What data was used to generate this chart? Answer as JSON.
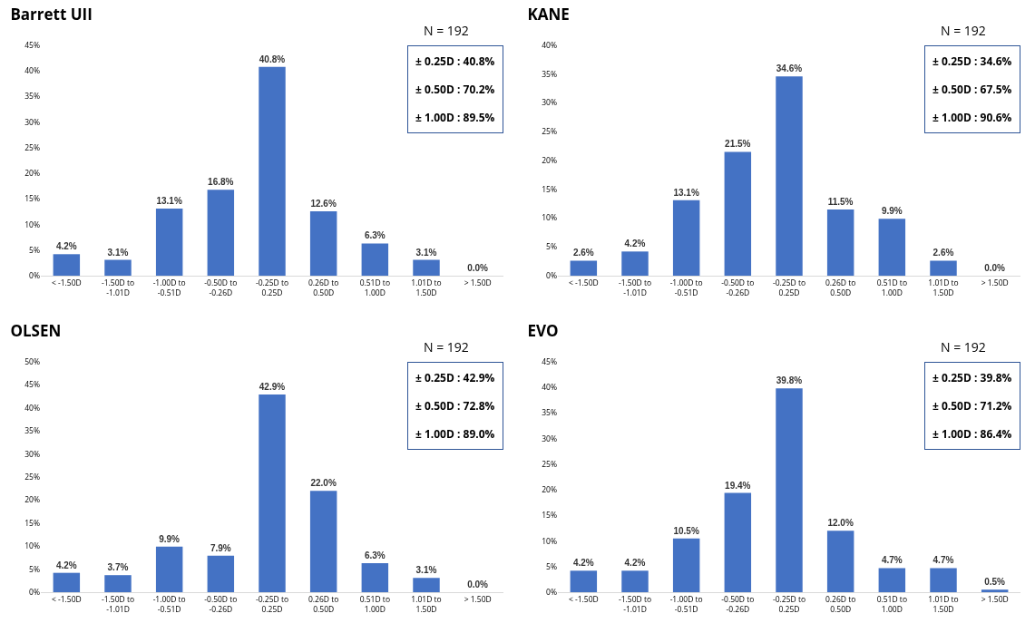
{
  "chart_data": [
    {
      "type": "bar",
      "title": "Barrett UII",
      "categories": [
        "< -1.50D",
        "-1.50D to -1.01D",
        "-1.00D to -0.51D",
        "-0.50D to -0.26D",
        "-0.25D to 0.25D",
        "0.26D to 0.50D",
        "0.51D to 1.00D",
        "1.01D to 1.50D",
        "> 1.50D"
      ],
      "values": [
        4.2,
        3.1,
        13.1,
        16.8,
        40.8,
        12.6,
        6.3,
        3.1,
        0.0
      ],
      "value_labels": [
        "4.2%",
        "3.1%",
        "13.1%",
        "16.8%",
        "40.8%",
        "12.6%",
        "6.3%",
        "3.1%",
        "0.0%"
      ],
      "color": "#4472c4",
      "ylim": [
        0,
        45
      ],
      "yticks": [
        {
          "value": 0,
          "label": "0%"
        },
        {
          "value": 5,
          "label": "5%"
        },
        {
          "value": 10,
          "label": "10%"
        },
        {
          "value": 15,
          "label": "15%"
        },
        {
          "value": 20,
          "label": "20%"
        },
        {
          "value": 25,
          "label": "25%"
        },
        {
          "value": 30,
          "label": "30%"
        },
        {
          "value": 35,
          "label": "35%"
        },
        {
          "value": 40,
          "label": "40%"
        },
        {
          "value": 45,
          "label": "45%"
        }
      ],
      "grid": false,
      "annotations": [
        "N = 192",
        "± 0.25D : 40.8%",
        "± 0.50D : 70.2%",
        "± 1.00D : 89.5%"
      ]
    },
    {
      "type": "bar",
      "title": "KANE",
      "categories": [
        "< -1.50D",
        "-1.50D to -1.01D",
        "-1.00D to -0.51D",
        "-0.50D to -0.26D",
        "-0.25D to 0.25D",
        "0.26D to 0.50D",
        "0.51D to 1.00D",
        "1.01D to 1.50D",
        "> 1.50D"
      ],
      "values": [
        2.6,
        4.2,
        13.1,
        21.5,
        34.6,
        11.5,
        9.9,
        2.6,
        0.0
      ],
      "value_labels": [
        "2.6%",
        "4.2%",
        "13.1%",
        "21.5%",
        "34.6%",
        "11.5%",
        "9.9%",
        "2.6%",
        "0.0%"
      ],
      "color": "#4472c4",
      "ylim": [
        0,
        40
      ],
      "yticks": [
        {
          "value": 0,
          "label": "0%"
        },
        {
          "value": 5,
          "label": "5%"
        },
        {
          "value": 10,
          "label": "10%"
        },
        {
          "value": 15,
          "label": "15%"
        },
        {
          "value": 20,
          "label": "20%"
        },
        {
          "value": 25,
          "label": "25%"
        },
        {
          "value": 30,
          "label": "30%"
        },
        {
          "value": 35,
          "label": "35%"
        },
        {
          "value": 40,
          "label": "40%"
        }
      ],
      "grid": false,
      "annotations": [
        "N = 192",
        "± 0.25D : 34.6%",
        "± 0.50D : 67.5%",
        "± 1.00D : 90.6%"
      ]
    },
    {
      "type": "bar",
      "title": "OLSEN",
      "categories": [
        "< -1.50D",
        "-1.50D to -1.01D",
        "-1.00D to -0.51D",
        "-0.50D to -0.26D",
        "-0.25D to 0.25D",
        "0.26D to 0.50D",
        "0.51D to 1.00D",
        "1.01D to 1.50D",
        "> 1.50D"
      ],
      "values": [
        4.2,
        3.7,
        9.9,
        7.9,
        42.9,
        22.0,
        6.3,
        3.1,
        0.0
      ],
      "value_labels": [
        "4.2%",
        "3.7%",
        "9.9%",
        "7.9%",
        "42.9%",
        "22.0%",
        "6.3%",
        "3.1%",
        "0.0%"
      ],
      "color": "#4472c4",
      "ylim": [
        0,
        50
      ],
      "yticks": [
        {
          "value": 0,
          "label": "0%"
        },
        {
          "value": 5,
          "label": "5%"
        },
        {
          "value": 10,
          "label": "10%"
        },
        {
          "value": 15,
          "label": "15%"
        },
        {
          "value": 20,
          "label": "20%"
        },
        {
          "value": 25,
          "label": "25%"
        },
        {
          "value": 30,
          "label": "30%"
        },
        {
          "value": 35,
          "label": "35%"
        },
        {
          "value": 40,
          "label": "40%"
        },
        {
          "value": 45,
          "label": "45%"
        },
        {
          "value": 50,
          "label": "50%"
        }
      ],
      "grid": false,
      "annotations": [
        "N = 192",
        "± 0.25D : 42.9%",
        "± 0.50D : 72.8%",
        "± 1.00D : 89.0%"
      ]
    },
    {
      "type": "bar",
      "title": "EVO",
      "categories": [
        "< -1.50D",
        "-1.50D to -1.01D",
        "-1.00D to -0.51D",
        "-0.50D to -0.26D",
        "-0.25D to 0.25D",
        "0.26D to 0.50D",
        "0.51D to 1.00D",
        "1.01D to 1.50D",
        "> 1.50D"
      ],
      "values": [
        4.2,
        4.2,
        10.5,
        19.4,
        39.8,
        12.0,
        4.7,
        4.7,
        0.5
      ],
      "value_labels": [
        "4.2%",
        "4.2%",
        "10.5%",
        "19.4%",
        "39.8%",
        "12.0%",
        "4.7%",
        "4.7%",
        "0.5%"
      ],
      "color": "#4472c4",
      "ylim": [
        0,
        45
      ],
      "yticks": [
        {
          "value": 0,
          "label": "0%"
        },
        {
          "value": 5,
          "label": "5%"
        },
        {
          "value": 10,
          "label": "10%"
        },
        {
          "value": 15,
          "label": "15%"
        },
        {
          "value": 20,
          "label": "20%"
        },
        {
          "value": 25,
          "label": "25%"
        },
        {
          "value": 30,
          "label": "30%"
        },
        {
          "value": 35,
          "label": "35%"
        },
        {
          "value": 40,
          "label": "40%"
        },
        {
          "value": 45,
          "label": "45%"
        }
      ],
      "grid": false,
      "annotations": [
        "N = 192",
        "± 0.25D : 39.8%",
        "± 0.50D : 71.2%",
        "± 1.00D : 86.4%"
      ]
    }
  ]
}
